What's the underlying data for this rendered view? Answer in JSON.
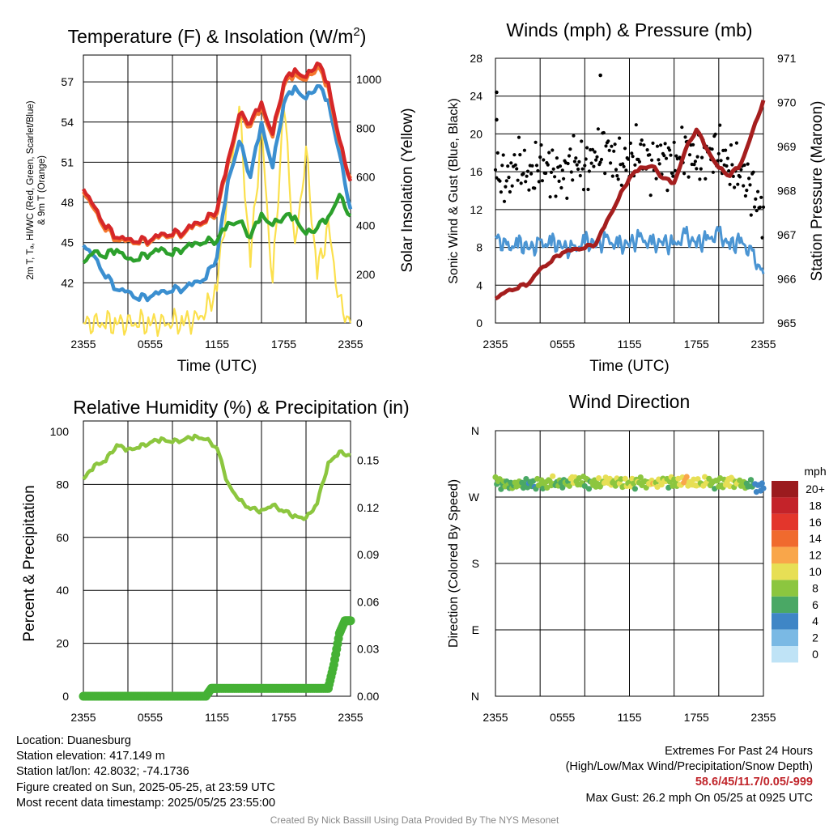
{
  "chart_data": [
    {
      "type": "line",
      "title": "Temperature (F) & Insolation (W/m²)",
      "title_main": "Temperature (F) & Insolation (W/m",
      "title_sup": "2",
      "title_end": ")",
      "xlabel": "Time (UTC)",
      "ylabel_lines": [
        "2m T, Tₐ, HI/WC (Red, Green, Scarlet/Blue)",
        "& 9m T (Orange)"
      ],
      "ylabel2": "Solar Insolation (Yellow)",
      "x_ticks": [
        "2355",
        "0555",
        "1155",
        "1755",
        "2355"
      ],
      "ylim": [
        39,
        59
      ],
      "y_ticks": [
        42,
        45,
        48,
        51,
        54,
        57
      ],
      "y2lim": [
        0,
        1100
      ],
      "y2_ticks": [
        0,
        200,
        400,
        600,
        800,
        1000
      ],
      "series": [
        {
          "color": "#d62728",
          "x": [
            0,
            1,
            2,
            3,
            4,
            5,
            6,
            7,
            8,
            9,
            10,
            11,
            12,
            13,
            14,
            15,
            16,
            17,
            18,
            19,
            20,
            21,
            22,
            23,
            24
          ],
          "values": [
            49,
            47.5,
            46.2,
            45.4,
            45.1,
            45.1,
            45.2,
            45.5,
            45.6,
            45.8,
            46.3,
            46.6,
            47.5,
            51,
            54.5,
            54,
            55.3,
            53,
            57,
            57.8,
            57.2,
            58.5,
            56.8,
            52.5,
            49.6
          ]
        },
        {
          "color": "#f4782f",
          "x": [
            0,
            1,
            2,
            3,
            4,
            5,
            6,
            7,
            8,
            9,
            10,
            11,
            12,
            13,
            14,
            15,
            16,
            17,
            18,
            19,
            20,
            21,
            22,
            23,
            24
          ],
          "values": [
            48.8,
            47.3,
            46,
            45.2,
            45,
            45,
            45.1,
            45.4,
            45.5,
            45.7,
            46.2,
            46.5,
            47.3,
            50.8,
            54.3,
            53.8,
            55,
            52.8,
            56.8,
            57.5,
            57,
            58.2,
            56.5,
            52.3,
            49.8
          ]
        },
        {
          "color": "#2ca02c",
          "x": [
            0,
            1,
            2,
            3,
            4,
            5,
            6,
            7,
            8,
            9,
            10,
            11,
            12,
            13,
            14,
            15,
            16,
            17,
            18,
            19,
            20,
            21,
            22,
            23,
            24
          ],
          "values": [
            43.5,
            44.2,
            44,
            44.5,
            43.6,
            43.8,
            44.2,
            44.4,
            44.1,
            44.6,
            44.8,
            45,
            45.2,
            46.3,
            46.5,
            45.5,
            47,
            46.2,
            47,
            46.8,
            45.5,
            46.2,
            46.8,
            48.4,
            47
          ]
        },
        {
          "color": "#3b8fd0",
          "x": [
            0,
            1,
            2,
            3,
            4,
            5,
            6,
            7,
            8,
            9,
            10,
            11,
            12,
            13,
            14,
            15,
            16,
            17,
            18,
            19,
            20,
            21,
            22,
            23,
            24
          ],
          "values": [
            44.8,
            43.8,
            42.5,
            41.5,
            41.2,
            40.8,
            41,
            41.2,
            41.4,
            41.6,
            41.9,
            42.3,
            44,
            49.5,
            52.5,
            50,
            53.8,
            50.5,
            55.5,
            56.5,
            55.6,
            56.8,
            55.5,
            51.5,
            47.5
          ]
        },
        {
          "color": "#fbe04d",
          "x": [
            0,
            1,
            2,
            3,
            4,
            5,
            6,
            7,
            8,
            9,
            10,
            11,
            12,
            13,
            14,
            15,
            16,
            17,
            18,
            19,
            20,
            21,
            22,
            23,
            24
          ],
          "values": [
            0,
            0,
            0,
            0,
            0,
            0,
            0,
            0,
            0,
            5,
            15,
            45,
            150,
            550,
            880,
            250,
            800,
            150,
            900,
            300,
            700,
            200,
            400,
            80,
            0
          ]
        }
      ]
    },
    {
      "type": "scatter",
      "title": "Winds (mph) & Pressure (mb)",
      "xlabel": "Time (UTC)",
      "ylabel": "Sonic Wind & Gust (Blue, Black)",
      "ylabel2": "Station Pressure (Maroon)",
      "x_ticks": [
        "2355",
        "0555",
        "1155",
        "1755",
        "2355"
      ],
      "ylim": [
        0,
        28
      ],
      "y_ticks": [
        0,
        4,
        8,
        12,
        16,
        20,
        24,
        28
      ],
      "y2lim": [
        965,
        971
      ],
      "y2_ticks": [
        965,
        966,
        967,
        968,
        969,
        970,
        971
      ],
      "series": [
        {
          "name": "wind",
          "color": "#4b95d3",
          "x": [
            0,
            1,
            2,
            3,
            4,
            5,
            6,
            7,
            8,
            9,
            10,
            11,
            12,
            13,
            14,
            15,
            16,
            17,
            18,
            19,
            20,
            21,
            22,
            23,
            24
          ],
          "values": [
            9.2,
            7.8,
            8.4,
            7.9,
            8.2,
            8.5,
            8.1,
            7.6,
            8.6,
            8.3,
            8.7,
            8.1,
            8.4,
            8.9,
            8.2,
            8.6,
            8.1,
            9.2,
            8.4,
            8.8,
            9.3,
            8.2,
            8.6,
            7.1,
            5.2
          ]
        },
        {
          "name": "gust",
          "color": "#000000",
          "x": [
            0,
            1,
            2,
            3,
            4,
            5,
            6,
            7,
            8,
            9,
            10,
            11,
            12,
            13,
            14,
            15,
            16,
            17,
            18,
            19,
            20,
            21,
            22,
            23,
            24
          ],
          "values": [
            16.2,
            14.8,
            17.1,
            15.3,
            16.8,
            16.1,
            15.5,
            17.4,
            16.2,
            17.8,
            18.6,
            16.4,
            17.2,
            18.1,
            16.5,
            17.6,
            16.8,
            18.3,
            17.1,
            17.9,
            18.2,
            16.4,
            15.8,
            14.2,
            11.2
          ],
          "extra_points": [
            [
              0.1,
              24.4
            ],
            [
              9.4,
              26.2
            ],
            [
              0.1,
              21.5
            ]
          ]
        },
        {
          "name": "pressure",
          "color": "#a51e1e",
          "axis": "right",
          "x": [
            0,
            1,
            2,
            3,
            4,
            5,
            6,
            7,
            8,
            9,
            10,
            11,
            12,
            13,
            14,
            15,
            16,
            17,
            18,
            19,
            20,
            21,
            22,
            23,
            24
          ],
          "values": [
            965.55,
            965.7,
            965.8,
            965.9,
            966.2,
            966.4,
            966.6,
            966.65,
            966.7,
            966.8,
            967.3,
            967.8,
            968.3,
            968.5,
            968.55,
            968.3,
            968.15,
            968.9,
            969.4,
            968.9,
            968.5,
            968.35,
            968.6,
            969.3,
            970.05
          ]
        }
      ]
    },
    {
      "type": "line",
      "title": "Relative Humidity (%) & Precipitation (in)",
      "ylabel": "Percent & Precipitation",
      "x_ticks": [
        "2355",
        "0555",
        "1155",
        "1755",
        "2355"
      ],
      "ylim": [
        0,
        100
      ],
      "y_ticks": [
        0,
        20,
        40,
        60,
        80,
        100
      ],
      "y2lim": [
        0,
        0.175
      ],
      "y2_ticks": [
        "0.00",
        "0.03",
        "0.06",
        "0.09",
        "0.12",
        "0.15"
      ],
      "y2_tick_values": [
        0,
        0.03,
        0.06,
        0.09,
        0.12,
        0.15
      ],
      "series": [
        {
          "name": "rh",
          "color": "#8cc63f",
          "x": [
            0,
            1,
            2,
            3,
            4,
            5,
            6,
            7,
            8,
            9,
            10,
            11,
            12,
            13,
            14,
            15,
            16,
            17,
            18,
            19,
            20,
            21,
            22,
            23,
            24
          ],
          "values": [
            82,
            87,
            89,
            95,
            93,
            94,
            96,
            97,
            96,
            97,
            98,
            97,
            94,
            80,
            74,
            71,
            70,
            72,
            70,
            68,
            67,
            73,
            88,
            92,
            91
          ]
        },
        {
          "name": "precip",
          "color": "#45b135",
          "axis": "right",
          "x": [
            0,
            1,
            2,
            3,
            4,
            5,
            6,
            7,
            8,
            9,
            10,
            11,
            11.5,
            12,
            13,
            14,
            15,
            16,
            17,
            18,
            19,
            20,
            21,
            22,
            22.5,
            23,
            23.5,
            24
          ],
          "values": [
            0,
            0,
            0,
            0,
            0,
            0,
            0,
            0,
            0,
            0,
            0,
            0,
            0.005,
            0.005,
            0.005,
            0.005,
            0.005,
            0.005,
            0.005,
            0.005,
            0.005,
            0.005,
            0.005,
            0.005,
            0.02,
            0.04,
            0.048,
            0.048
          ]
        }
      ]
    },
    {
      "type": "scatter",
      "title": "Wind Direction",
      "ylabel": "Direction (Colored By Speed)",
      "x_ticks": [
        "2355",
        "0555",
        "1155",
        "1755",
        "2355"
      ],
      "y_ticks": [
        "N",
        "E",
        "S",
        "W",
        "N"
      ],
      "ylim": [
        0,
        360
      ],
      "colorbar_title": "mph",
      "colorbar_labels": [
        "20+",
        "18",
        "16",
        "14",
        "12",
        "10",
        "8",
        "6",
        "4",
        "2",
        "0"
      ],
      "colorbar_colors": [
        "#9b1b1e",
        "#c4232a",
        "#e3362c",
        "#f06a2e",
        "#f9a64a",
        "#e7df55",
        "#8cc63f",
        "#4aa865",
        "#3f86c6",
        "#7ab9e4",
        "#bfe3f6"
      ],
      "series": [
        {
          "name": "direction",
          "x": [
            0,
            1,
            2,
            3,
            4,
            5,
            6,
            7,
            8,
            9,
            10,
            11,
            12,
            13,
            14,
            15,
            16,
            17,
            18,
            19,
            20,
            21,
            22,
            23,
            24
          ],
          "values": [
            292,
            285,
            287,
            288,
            286,
            290,
            288,
            292,
            290,
            288,
            291,
            289,
            288,
            290,
            287,
            292,
            289,
            291,
            288,
            290,
            287,
            291,
            288,
            285,
            283
          ],
          "speeds": [
            7,
            6,
            8,
            5,
            7,
            8,
            6,
            9,
            7,
            8,
            10,
            8,
            9,
            7,
            10,
            9,
            8,
            11,
            10,
            9,
            7,
            10,
            8,
            5,
            4
          ]
        }
      ]
    }
  ],
  "info": {
    "location": "Location: Duanesburg",
    "elevation": "Station elevation: 417.149 m",
    "latlon": "Station lat/lon: 42.8032; -74.1736",
    "created": "Figure created on Sun, 2025-05-25, at 23:59 UTC",
    "recent": "Most recent data timestamp: 2025/05/25 23:55:00"
  },
  "extremes": {
    "heading": "Extremes For Past 24 Hours",
    "subheading": "(High/Low/Max Wind/Precipitation/Snow Depth)",
    "values": "58.6/45/11.7/0.05/-999",
    "gust": "Max Gust: 26.2 mph On 05/25 at 0925 UTC"
  },
  "credit": "Created By Nick Bassill Using Data Provided By The NYS Mesonet"
}
